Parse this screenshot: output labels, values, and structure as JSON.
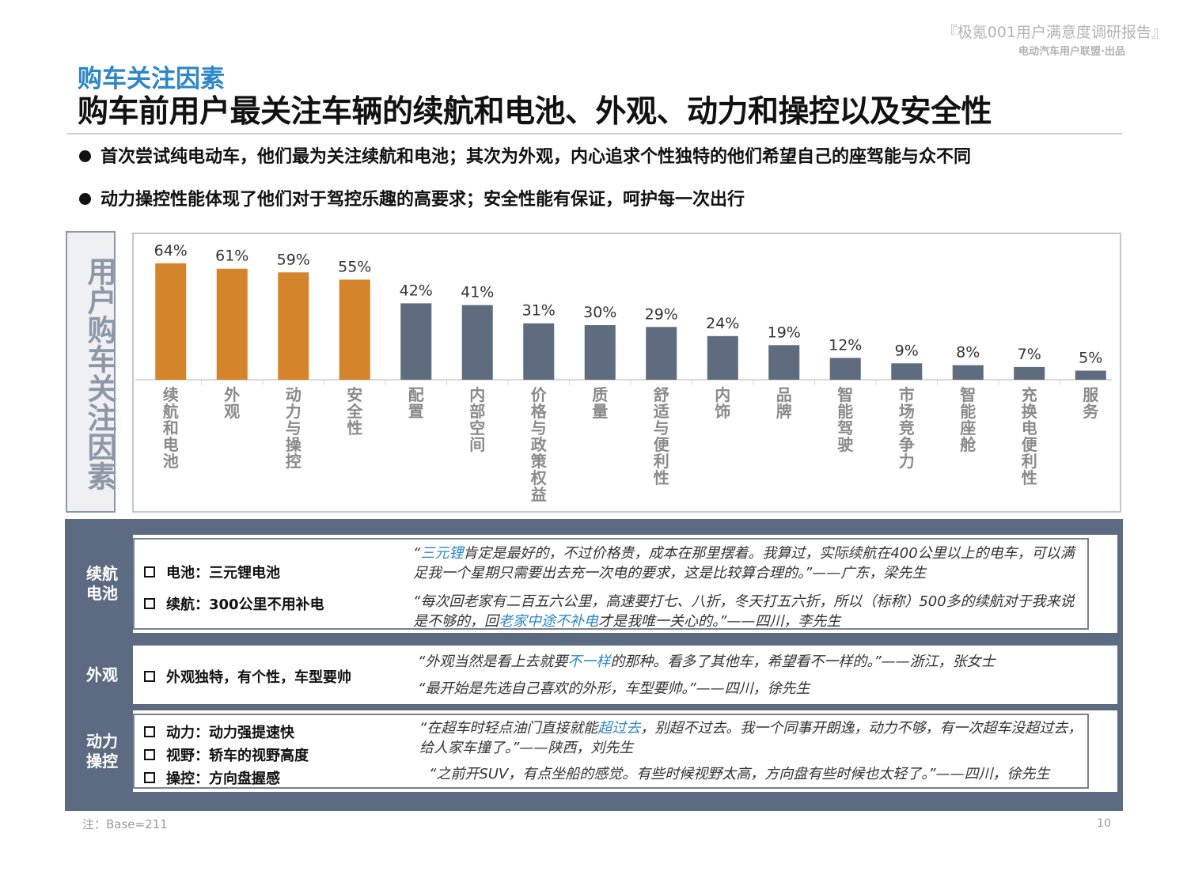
{
  "header": {
    "report_title": "『极氪001用户满意度调研报告』",
    "report_subtitle": "电动汽车用户联盟·出品",
    "section_label": "购车关注因素",
    "headline": "购车前用户最关注车辆的续航和电池、外观、动力和操控以及安全性"
  },
  "bullets": [
    "首次尝试纯电动车，他们最为关注续航和电池；其次为外观，内心追求个性独特的他们希望自己的座驾能与众不同",
    "动力操控性能体现了他们对于驾控乐趣的高要求；安全性能有保证，呵护每一次出行"
  ],
  "chart_side_label": "用户购车关注因素",
  "chart_data": {
    "type": "bar",
    "categories": [
      "续航和电池",
      "外观",
      "动力与操控",
      "安全性",
      "配置",
      "内部空间",
      "价格与政策权益",
      "质量",
      "舒适与便利性",
      "内饰",
      "品牌",
      "智能驾驶",
      "市场竞争力",
      "智能座舱",
      "充换电便利性",
      "服务"
    ],
    "values": [
      64,
      61,
      59,
      55,
      42,
      41,
      31,
      30,
      29,
      24,
      19,
      12,
      9,
      8,
      7,
      5
    ],
    "value_labels": [
      "64%",
      "61%",
      "59%",
      "55%",
      "42%",
      "41%",
      "31%",
      "30%",
      "29%",
      "24%",
      "19%",
      "12%",
      "9%",
      "8%",
      "7%",
      "5%"
    ],
    "unit": "%",
    "highlight_count": 4,
    "colors": {
      "highlight": "#d4842a",
      "normal": "#5f6b7e"
    },
    "title": "",
    "xlabel": "",
    "ylabel": "",
    "ylim": [
      0,
      70
    ],
    "grid": false,
    "legend": "none"
  },
  "panel": {
    "rows": [
      {
        "label": "续航\n电池",
        "items": [
          "电池：三元锂电池",
          "续航：300公里不用补电"
        ],
        "quotes": [
          {
            "pre": "“",
            "hl": "三元锂",
            "post": "肯定是最好的，不过价格贵，成本在那里摆着。我算过，实际续航在400公里以上的电车，可以满足我一个星期只需要出去充一次电的要求，这是比较算合理的。”——广东，梁先生"
          },
          {
            "pre": "“每次回老家有二百五六公里，高速要打七、八折，冬天打五六折，所以（标称）500多的续航对于我来说是不够的，回",
            "hl": "老家中途不补电",
            "post": "才是我唯一关心的。”——四川，李先生"
          }
        ]
      },
      {
        "label": "外观",
        "items": [
          "外观独特，有个性，车型要帅"
        ],
        "quotes": [
          {
            "pre": "“外观当然是看上去就要",
            "hl": "不一样",
            "post": "的那种。看多了其他车，希望看不一样的。”——浙江，张女士"
          },
          {
            "pre": "“最开始是先选自己喜欢的外形，车型要帅。”——四川，徐先生",
            "hl": "",
            "post": ""
          }
        ]
      },
      {
        "label": "动力\n操控",
        "items": [
          "动力：动力强提速快",
          "视野：轿车的视野高度",
          "操控：方向盘握感"
        ],
        "quotes": [
          {
            "pre": "“在超车时轻点油门直接就能",
            "hl": "超过去",
            "post": "，别超不过去。我一个同事开朗逸，动力不够，有一次超车没超过去，给人家车撞了。”——陕西，刘先生"
          },
          {
            "pre": "“之前开SUV，有点坐船的感觉。有些时候视野太高，方向盘有些时候也太轻了。”——四川，徐先生",
            "hl": "",
            "post": ""
          }
        ]
      }
    ]
  },
  "footer": {
    "note": "注：Base=211",
    "page_number": "10"
  }
}
